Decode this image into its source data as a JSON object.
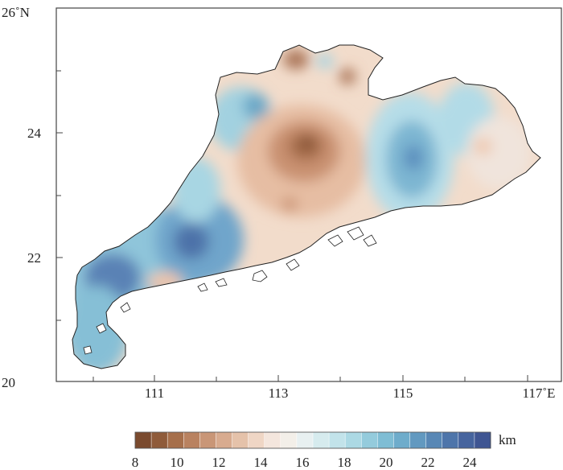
{
  "map": {
    "y_ticks": [
      "26˚N",
      "24",
      "22",
      "20"
    ],
    "x_ticks": [
      "111",
      "113",
      "115",
      "117˚E"
    ]
  },
  "colorbar": {
    "unit": "km",
    "labels": [
      "8",
      "10",
      "12",
      "14",
      "16",
      "18",
      "20",
      "22",
      "24"
    ],
    "range": [
      8,
      25
    ],
    "colors": [
      "#7a4a2e",
      "#8f5b3a",
      "#a66f4b",
      "#b98260",
      "#c99677",
      "#d8ab8f",
      "#e5c2aa",
      "#efd6c5",
      "#f4e6dd",
      "#f3efe9",
      "#e8f0f1",
      "#d6ebee",
      "#c2e3ea",
      "#acd9e4",
      "#94cbdc",
      "#7fbdd4",
      "#6eaccb",
      "#6299c0",
      "#5887b5",
      "#4e75aa",
      "#46649e",
      "#3f5592"
    ]
  },
  "colors": {
    "land_warm": "#f1d5c3",
    "land_cool": "#a7d3e2",
    "frame": "#444444"
  }
}
